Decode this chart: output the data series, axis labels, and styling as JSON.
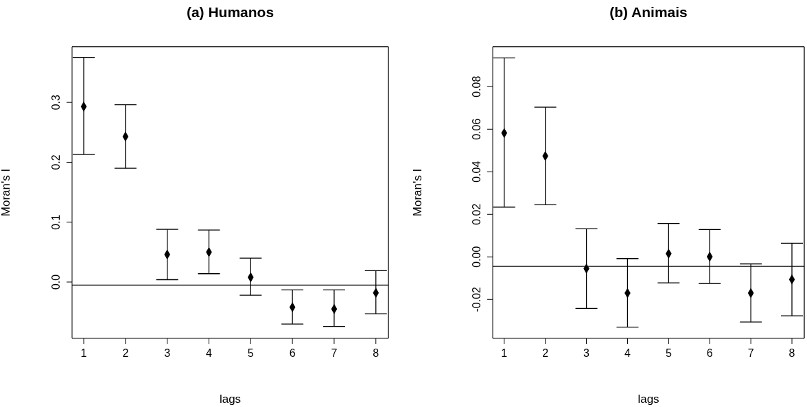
{
  "chart_data": [
    {
      "type": "scatter",
      "title": "(a) Humanos",
      "xlabel": "lags",
      "ylabel": "Moran's I",
      "color": "#000000",
      "marker": "diamond",
      "grid": false,
      "x": [
        1,
        2,
        3,
        4,
        5,
        6,
        7,
        8
      ],
      "values": [
        0.293,
        0.243,
        0.046,
        0.05,
        0.008,
        -0.042,
        -0.045,
        -0.018
      ],
      "errors": [
        [
          0.213,
          0.375
        ],
        [
          0.19,
          0.296
        ],
        [
          0.004,
          0.088
        ],
        [
          0.014,
          0.087
        ],
        [
          -0.022,
          0.04
        ],
        [
          -0.07,
          -0.013
        ],
        [
          -0.074,
          -0.013
        ],
        [
          -0.053,
          0.019
        ]
      ],
      "xlim": [
        0.72,
        8.3
      ],
      "xticks": [
        1,
        2,
        3,
        4,
        5,
        6,
        7,
        8
      ],
      "ylim": [
        -0.094,
        0.393
      ],
      "yticks": [
        {
          "value": 0,
          "label": "0.0"
        },
        {
          "value": 0.1,
          "label": "0.1"
        },
        {
          "value": 0.2,
          "label": "0.2"
        },
        {
          "value": 0.3,
          "label": "0.3"
        }
      ],
      "ref_lines": [
        {
          "axis": "y",
          "value": -0.005,
          "color": "#000000"
        }
      ]
    },
    {
      "type": "scatter",
      "title": "(b) Animais",
      "xlabel": "lags",
      "ylabel": "Moran's I",
      "color": "#000000",
      "marker": "diamond",
      "grid": false,
      "x": [
        1,
        2,
        3,
        4,
        5,
        6,
        7,
        8
      ],
      "values": [
        0.0582,
        0.0474,
        -0.0055,
        -0.017,
        0.0015,
        0.0001,
        -0.017,
        -0.0106
      ],
      "errors": [
        [
          0.0234,
          0.0935
        ],
        [
          0.0245,
          0.0704
        ],
        [
          -0.0242,
          0.0132
        ],
        [
          -0.033,
          -0.0008
        ],
        [
          -0.0122,
          0.0157
        ],
        [
          -0.0125,
          0.0129
        ],
        [
          -0.0306,
          -0.0033
        ],
        [
          -0.0277,
          0.0064
        ]
      ],
      "xlim": [
        0.72,
        8.3
      ],
      "xticks": [
        1,
        2,
        3,
        4,
        5,
        6,
        7,
        8
      ],
      "ylim": [
        -0.0383,
        0.0988
      ],
      "yticks": [
        {
          "value": -0.02,
          "label": "-0.02"
        },
        {
          "value": 0,
          "label": "0.00"
        },
        {
          "value": 0.02,
          "label": "0.02"
        },
        {
          "value": 0.04,
          "label": "0.04"
        },
        {
          "value": 0.06,
          "label": "0.06"
        },
        {
          "value": 0.08,
          "label": "0.08"
        }
      ],
      "ref_lines": [
        {
          "axis": "y",
          "value": -0.0045,
          "color": "#000000"
        }
      ]
    }
  ]
}
